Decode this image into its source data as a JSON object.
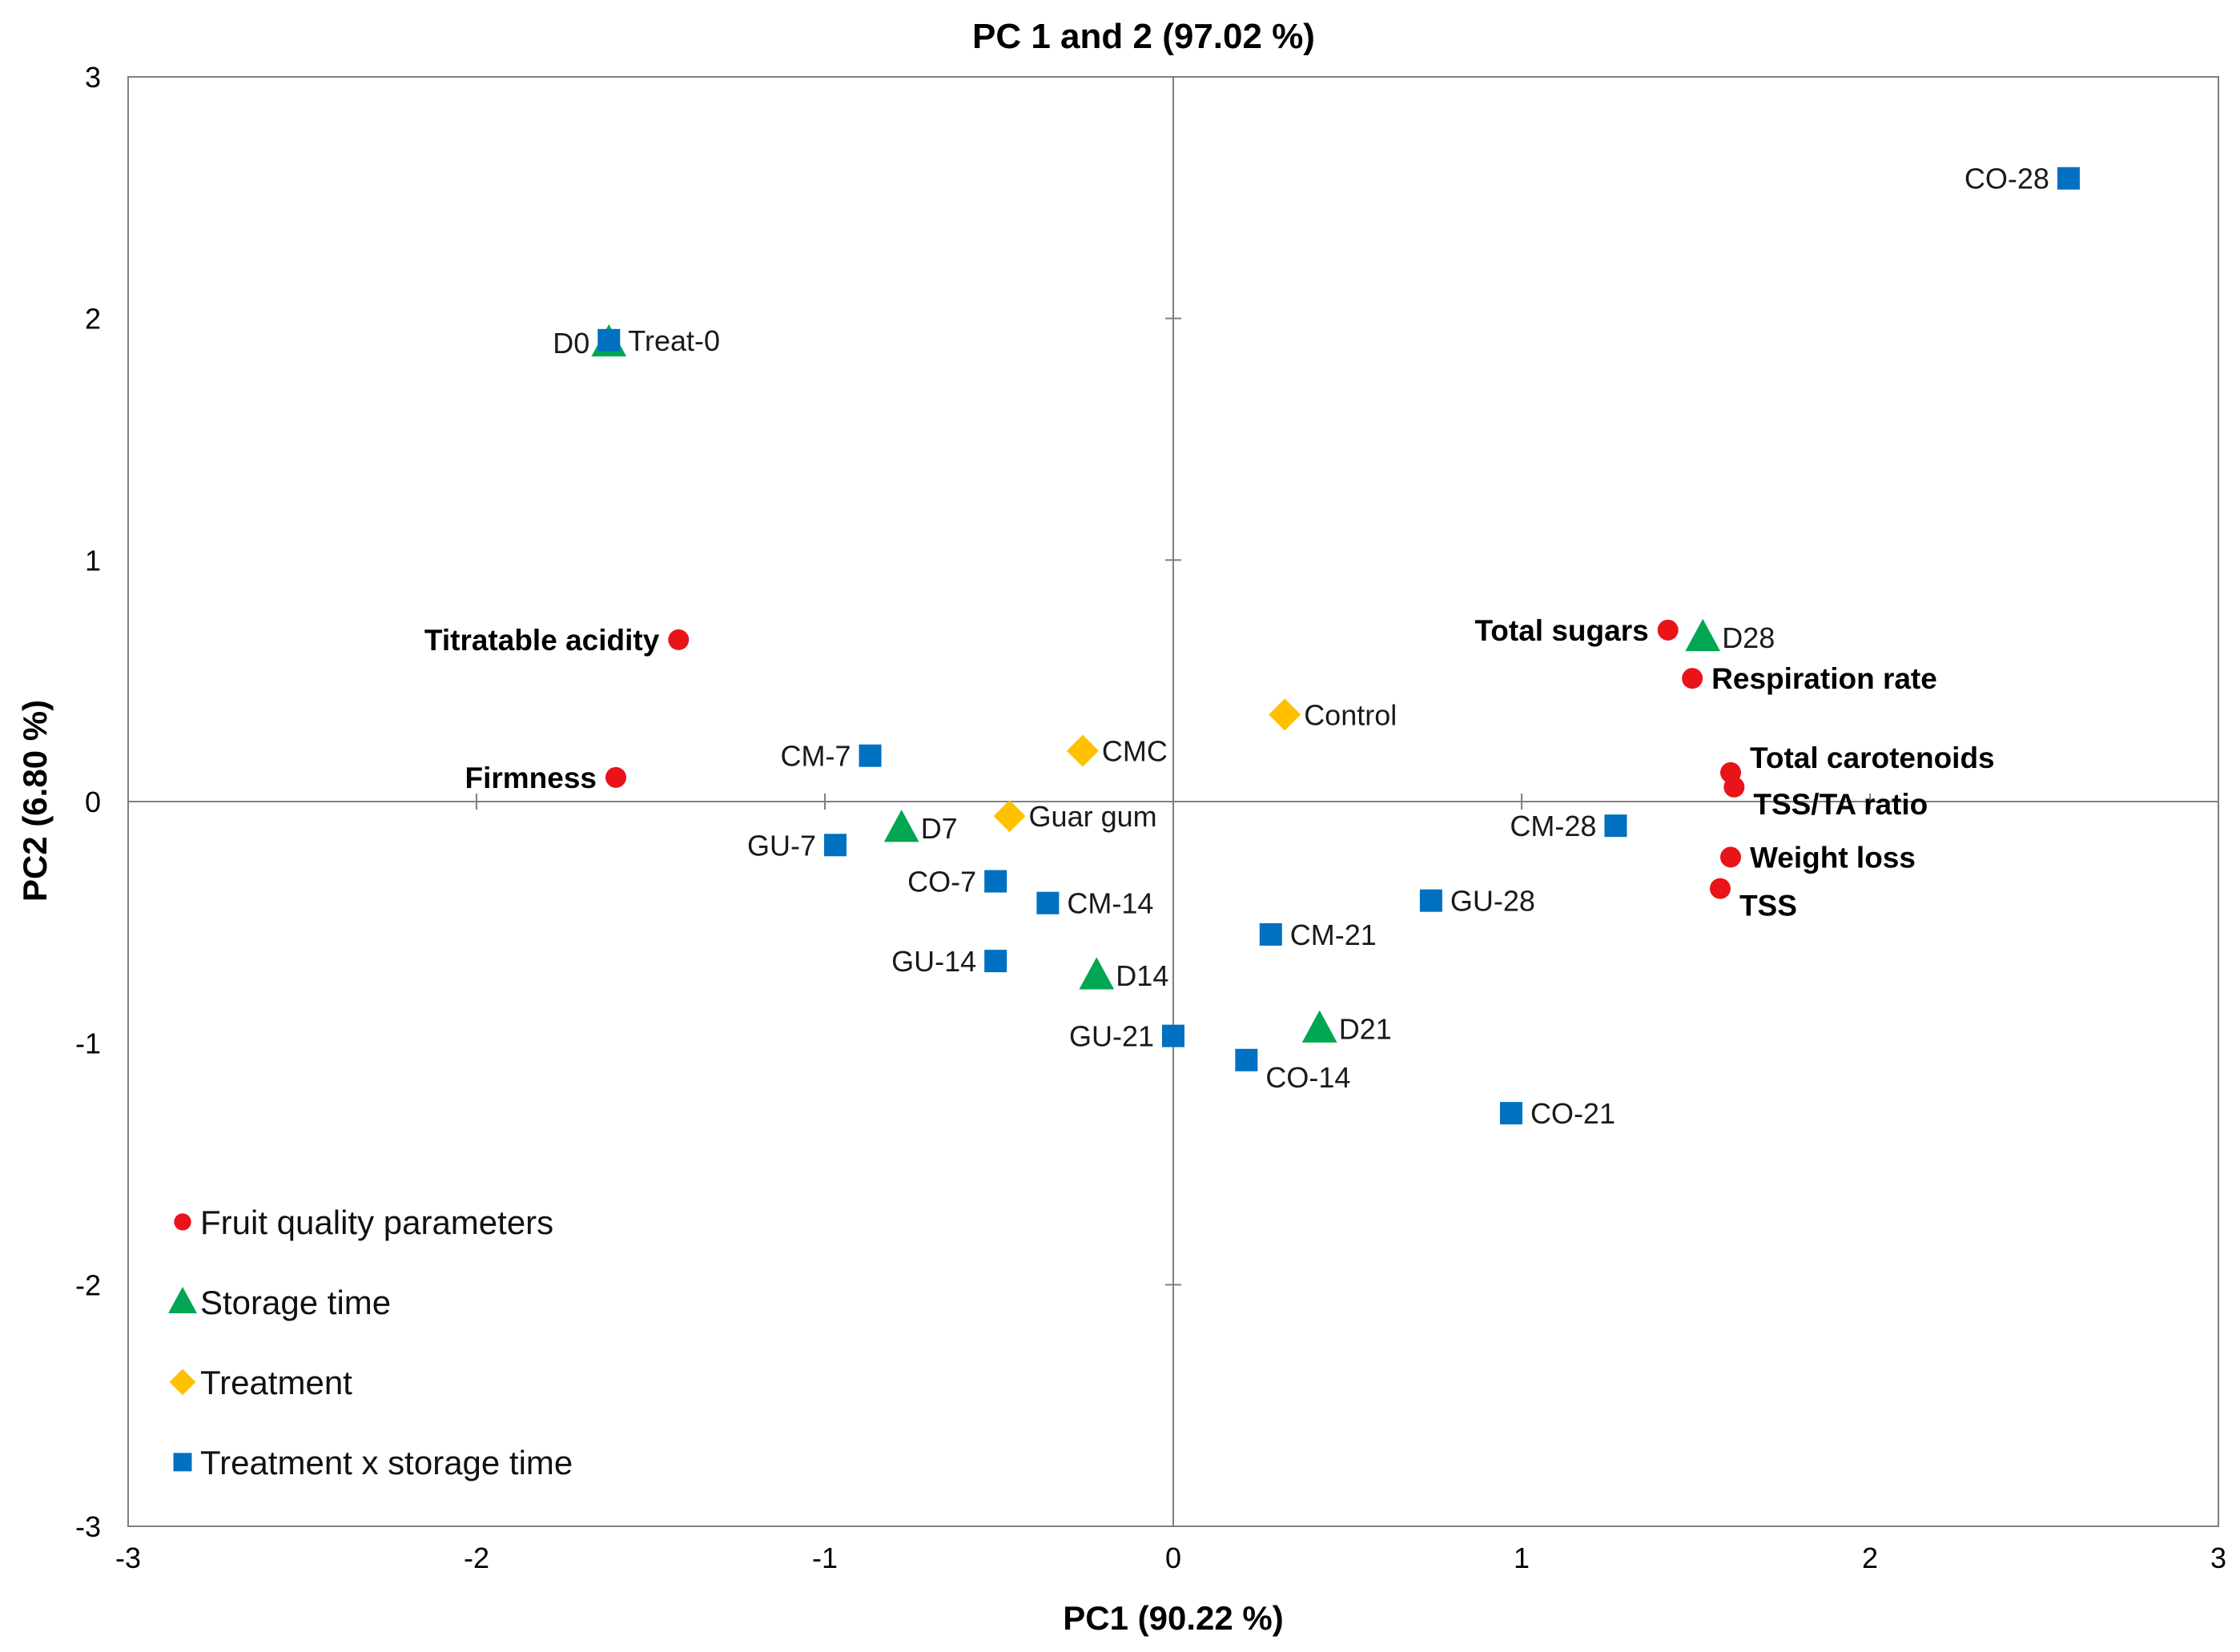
{
  "chart_data": {
    "type": "scatter",
    "title": "PC 1 and 2 (97.02 %)",
    "xlabel": "PC1 (90.22 %)",
    "ylabel": "PC2 (6.80 %)",
    "xlim": [
      -3,
      3
    ],
    "ylim": [
      -3,
      3
    ],
    "xticks": [
      -3,
      -2,
      -1,
      0,
      1,
      2,
      3
    ],
    "yticks": [
      -3,
      -2,
      -1,
      0,
      1,
      2,
      3
    ],
    "legend": {
      "position": "bottom-left"
    },
    "series": [
      {
        "name": "Fruit quality parameters",
        "marker": "circle",
        "color": "#e8141a",
        "points": [
          {
            "label": "Titratable acidity",
            "x": -1.42,
            "y": 0.67,
            "anchor": "left",
            "bold": true
          },
          {
            "label": "Firmness",
            "x": -1.6,
            "y": 0.1,
            "anchor": "left",
            "bold": true
          },
          {
            "label": "Total sugars",
            "x": 1.42,
            "y": 0.71,
            "anchor": "left",
            "bold": true
          },
          {
            "label": "Respiration rate",
            "x": 1.49,
            "y": 0.51,
            "anchor": "right",
            "bold": true
          },
          {
            "label": "Total carotenoids",
            "x": 1.6,
            "y": 0.12,
            "anchor": "right-up",
            "bold": true
          },
          {
            "label": "TSS/TA ratio",
            "x": 1.61,
            "y": 0.06,
            "anchor": "right-down",
            "bold": true
          },
          {
            "label": "Weight loss",
            "x": 1.6,
            "y": -0.23,
            "anchor": "right",
            "bold": true
          },
          {
            "label": "TSS",
            "x": 1.57,
            "y": -0.36,
            "anchor": "right-down",
            "bold": true
          }
        ]
      },
      {
        "name": "Storage time",
        "marker": "triangle",
        "color": "#00a651",
        "points": [
          {
            "label": "D0",
            "x": -1.62,
            "y": 1.9,
            "anchor": "left"
          },
          {
            "label": "D7",
            "x": -0.78,
            "y": -0.11,
            "anchor": "right"
          },
          {
            "label": "D14",
            "x": -0.22,
            "y": -0.72,
            "anchor": "right"
          },
          {
            "label": "D21",
            "x": 0.42,
            "y": -0.94,
            "anchor": "right"
          },
          {
            "label": "D28",
            "x": 1.52,
            "y": 0.68,
            "anchor": "right"
          }
        ]
      },
      {
        "name": "Treatment",
        "marker": "diamond",
        "color": "#ffc000",
        "points": [
          {
            "label": "CMC",
            "x": -0.26,
            "y": 0.21,
            "anchor": "right"
          },
          {
            "label": "Guar gum",
            "x": -0.47,
            "y": -0.06,
            "anchor": "right"
          },
          {
            "label": "Control",
            "x": 0.32,
            "y": 0.36,
            "anchor": "right"
          }
        ]
      },
      {
        "name": "Treatment x storage time",
        "marker": "square",
        "color": "#0070c0",
        "points": [
          {
            "label": "Treat-0",
            "x": -1.62,
            "y": 1.91,
            "anchor": "right"
          },
          {
            "label": "CO-28",
            "x": 2.57,
            "y": 2.58,
            "anchor": "left"
          },
          {
            "label": "CM-7",
            "x": -0.87,
            "y": 0.19,
            "anchor": "left"
          },
          {
            "label": "GU-7",
            "x": -0.97,
            "y": -0.18,
            "anchor": "left"
          },
          {
            "label": "CO-7",
            "x": -0.51,
            "y": -0.33,
            "anchor": "left"
          },
          {
            "label": "CM-14",
            "x": -0.36,
            "y": -0.42,
            "anchor": "right"
          },
          {
            "label": "GU-14",
            "x": -0.51,
            "y": -0.66,
            "anchor": "left"
          },
          {
            "label": "GU-21",
            "x": 0.0,
            "y": -0.97,
            "anchor": "left"
          },
          {
            "label": "CO-14",
            "x": 0.21,
            "y": -1.07,
            "anchor": "right-down"
          },
          {
            "label": "CM-21",
            "x": 0.28,
            "y": -0.55,
            "anchor": "right"
          },
          {
            "label": "GU-28",
            "x": 0.74,
            "y": -0.41,
            "anchor": "right"
          },
          {
            "label": "CM-28",
            "x": 1.27,
            "y": -0.1,
            "anchor": "left"
          },
          {
            "label": "CO-21",
            "x": 0.97,
            "y": -1.29,
            "anchor": "right"
          }
        ]
      }
    ]
  }
}
